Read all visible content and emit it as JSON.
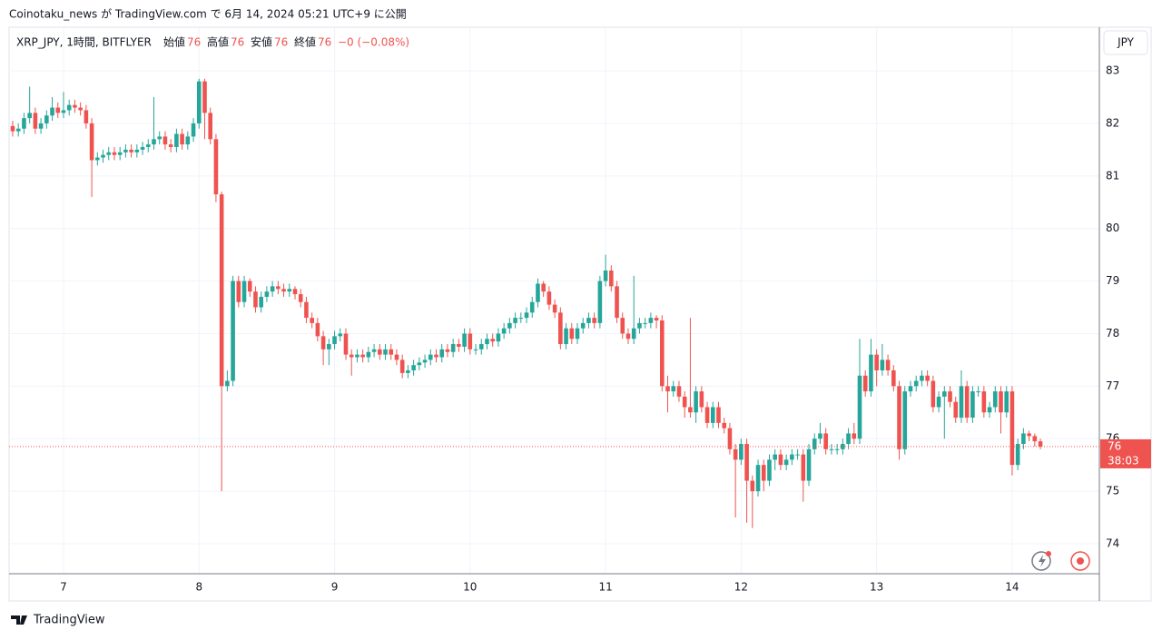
{
  "header": {
    "text": "Coinotaku_news が TradingView.com で 6月 14, 2024 05:21 UTC+9 に公開"
  },
  "legend": {
    "symbol": "XRP_JPY, 1時間, BITFLYER",
    "open_label": "始値",
    "open": 76,
    "high_label": "高値",
    "high": 76,
    "low_label": "安値",
    "low": 76,
    "close_label": "終値",
    "close": 76,
    "change": "−0 (−0.08%)"
  },
  "footer": {
    "brand": "TradingView"
  },
  "chart_data": {
    "type": "candlestick",
    "currency": "JPY",
    "up_color": "#26a69a",
    "down_color": "#ef5350",
    "ylim": [
      73.43,
      83.83
    ],
    "yticks": [
      74,
      75,
      76,
      77,
      78,
      79,
      80,
      81,
      82,
      83
    ],
    "grid": true,
    "last_price": 75.85,
    "last_price_label": "76",
    "countdown": "38:03",
    "categories": [
      null,
      null,
      null,
      null,
      null,
      null,
      null,
      null,
      null,
      "7",
      null,
      null,
      null,
      null,
      null,
      null,
      null,
      null,
      null,
      null,
      null,
      null,
      null,
      null,
      null,
      null,
      null,
      null,
      null,
      null,
      null,
      null,
      null,
      "8",
      null,
      null,
      null,
      null,
      null,
      null,
      null,
      null,
      null,
      null,
      null,
      null,
      null,
      null,
      null,
      null,
      null,
      null,
      null,
      null,
      null,
      null,
      null,
      "9",
      null,
      null,
      null,
      null,
      null,
      null,
      null,
      null,
      null,
      null,
      null,
      null,
      null,
      null,
      null,
      null,
      null,
      null,
      null,
      null,
      null,
      null,
      null,
      "10",
      null,
      null,
      null,
      null,
      null,
      null,
      null,
      null,
      null,
      null,
      null,
      null,
      null,
      null,
      null,
      null,
      null,
      null,
      null,
      null,
      null,
      null,
      null,
      "11",
      null,
      null,
      null,
      null,
      null,
      null,
      null,
      null,
      null,
      null,
      null,
      null,
      null,
      null,
      null,
      null,
      null,
      null,
      null,
      null,
      null,
      null,
      null,
      "12",
      null,
      null,
      null,
      null,
      null,
      null,
      null,
      null,
      null,
      null,
      null,
      null,
      null,
      null,
      null,
      null,
      null,
      null,
      null,
      null,
      null,
      null,
      null,
      "13",
      null,
      null,
      null,
      null,
      null,
      null,
      null,
      null,
      null,
      null,
      null,
      null,
      null,
      null,
      null,
      null,
      null,
      null,
      null,
      null,
      null,
      null,
      null,
      "14",
      null,
      null,
      null,
      null,
      null
    ],
    "open": [
      81.95,
      81.85,
      81.9,
      82.1,
      82.2,
      81.9,
      82.0,
      82.15,
      82.3,
      82.2,
      82.25,
      82.35,
      82.3,
      82.25,
      82.0,
      81.3,
      81.35,
      81.4,
      81.45,
      81.4,
      81.45,
      81.5,
      81.45,
      81.5,
      81.55,
      81.6,
      81.7,
      81.75,
      81.6,
      81.55,
      81.8,
      81.6,
      81.75,
      82.0,
      82.8,
      82.2,
      81.7,
      80.65,
      77.0,
      77.1,
      79.0,
      78.6,
      79.0,
      78.8,
      78.5,
      78.7,
      78.8,
      78.9,
      78.85,
      78.8,
      78.85,
      78.75,
      78.6,
      78.3,
      78.2,
      77.95,
      77.7,
      77.8,
      77.95,
      78.0,
      77.6,
      77.55,
      77.6,
      77.55,
      77.65,
      77.7,
      77.6,
      77.7,
      77.6,
      77.5,
      77.25,
      77.3,
      77.4,
      77.45,
      77.5,
      77.6,
      77.55,
      77.7,
      77.65,
      77.8,
      77.75,
      78.0,
      77.7,
      77.7,
      77.8,
      77.9,
      77.85,
      78.0,
      78.1,
      78.2,
      78.3,
      78.3,
      78.4,
      78.6,
      78.95,
      78.8,
      78.55,
      78.4,
      77.8,
      78.1,
      77.9,
      78.1,
      78.2,
      78.3,
      78.2,
      79.0,
      79.2,
      78.9,
      78.3,
      78.0,
      77.9,
      78.1,
      78.2,
      78.2,
      78.3,
      78.25,
      77.0,
      76.9,
      77.0,
      76.8,
      76.6,
      76.5,
      76.9,
      76.6,
      76.3,
      76.6,
      76.3,
      76.2,
      75.8,
      75.6,
      75.9,
      75.2,
      75.0,
      75.5,
      75.2,
      75.6,
      75.7,
      75.5,
      75.6,
      75.7,
      75.7,
      75.2,
      75.8,
      76.0,
      76.1,
      75.8,
      75.8,
      75.8,
      75.9,
      76.1,
      76.0,
      77.2,
      76.9,
      77.6,
      77.3,
      77.5,
      77.3,
      77.0,
      75.8,
      76.9,
      77.0,
      77.1,
      77.2,
      77.1,
      76.6,
      76.8,
      76.9,
      76.7,
      76.4,
      77.0,
      76.4,
      76.9,
      76.9,
      76.5,
      76.6,
      76.9,
      76.5,
      76.9,
      75.5,
      75.9,
      76.1,
      76.05,
      75.95
    ],
    "high": [
      82.05,
      82.0,
      82.2,
      82.7,
      82.3,
      82.1,
      82.25,
      82.5,
      82.4,
      82.6,
      82.45,
      82.45,
      82.4,
      82.35,
      82.1,
      81.45,
      81.5,
      81.55,
      81.55,
      81.55,
      81.6,
      81.6,
      81.6,
      81.65,
      81.7,
      82.5,
      81.85,
      81.85,
      81.7,
      81.9,
      81.9,
      81.85,
      82.1,
      82.85,
      82.85,
      82.3,
      81.8,
      80.7,
      77.3,
      79.1,
      79.1,
      79.1,
      79.05,
      78.9,
      78.8,
      78.9,
      79.0,
      79.0,
      78.95,
      78.95,
      78.9,
      78.85,
      78.7,
      78.4,
      78.3,
      78.05,
      77.9,
      78.05,
      78.1,
      78.1,
      77.7,
      77.7,
      77.7,
      77.75,
      77.8,
      77.8,
      77.8,
      77.8,
      77.7,
      77.6,
      77.4,
      77.5,
      77.55,
      77.6,
      77.7,
      77.7,
      77.8,
      77.8,
      77.9,
      77.9,
      78.1,
      78.1,
      77.8,
      77.9,
      78.0,
      78.0,
      78.1,
      78.2,
      78.3,
      78.4,
      78.4,
      78.5,
      78.7,
      79.05,
      79.0,
      78.9,
      78.65,
      78.5,
      78.2,
      78.2,
      78.2,
      78.3,
      78.4,
      78.4,
      79.1,
      79.5,
      79.3,
      79.0,
      78.4,
      78.1,
      79.1,
      78.3,
      78.3,
      78.4,
      78.35,
      78.35,
      77.2,
      77.1,
      77.1,
      76.9,
      78.3,
      77.0,
      77.0,
      76.7,
      76.7,
      76.7,
      76.4,
      76.3,
      75.9,
      76.0,
      76.0,
      75.3,
      75.6,
      75.6,
      75.7,
      75.8,
      75.8,
      75.7,
      75.8,
      75.8,
      75.8,
      75.9,
      76.1,
      76.3,
      76.2,
      75.9,
      75.9,
      76.0,
      76.2,
      76.3,
      77.9,
      77.3,
      77.9,
      77.7,
      77.8,
      77.6,
      77.4,
      77.1,
      77.0,
      77.1,
      77.2,
      77.3,
      77.3,
      77.2,
      76.9,
      77.0,
      77.0,
      76.8,
      77.3,
      77.1,
      77.0,
      77.0,
      77.0,
      76.7,
      77.0,
      77.0,
      77.0,
      77.0,
      76.0,
      76.2,
      76.15,
      76.1,
      76.0
    ],
    "low": [
      81.75,
      81.75,
      81.8,
      82.0,
      81.8,
      81.8,
      81.9,
      82.05,
      82.1,
      82.1,
      82.15,
      82.2,
      82.15,
      81.9,
      80.6,
      81.2,
      81.25,
      81.3,
      81.3,
      81.3,
      81.35,
      81.35,
      81.35,
      81.4,
      81.45,
      81.5,
      81.6,
      81.5,
      81.45,
      81.45,
      81.5,
      81.5,
      81.65,
      81.9,
      81.7,
      81.6,
      80.5,
      75.0,
      76.9,
      77.0,
      78.5,
      78.5,
      78.7,
      78.4,
      78.4,
      78.6,
      78.7,
      78.75,
      78.7,
      78.7,
      78.65,
      78.5,
      78.2,
      78.1,
      77.85,
      77.4,
      77.4,
      77.7,
      77.85,
      77.5,
      77.2,
      77.45,
      77.45,
      77.45,
      77.55,
      77.5,
      77.5,
      77.5,
      77.4,
      77.15,
      77.15,
      77.2,
      77.3,
      77.35,
      77.4,
      77.45,
      77.45,
      77.55,
      77.55,
      77.65,
      77.65,
      77.6,
      77.6,
      77.6,
      77.7,
      77.75,
      77.75,
      77.9,
      78.0,
      78.1,
      78.2,
      78.2,
      78.3,
      78.5,
      78.7,
      78.45,
      78.3,
      77.7,
      77.7,
      77.8,
      77.8,
      78.0,
      78.1,
      78.1,
      78.1,
      78.9,
      78.8,
      78.2,
      77.9,
      77.8,
      77.8,
      78.0,
      78.1,
      78.1,
      78.1,
      76.9,
      76.5,
      76.8,
      76.7,
      76.4,
      76.4,
      76.3,
      76.5,
      76.2,
      76.2,
      76.2,
      76.1,
      75.7,
      74.5,
      75.5,
      74.4,
      74.3,
      74.9,
      75.0,
      75.1,
      75.4,
      75.4,
      75.4,
      75.5,
      75.6,
      74.8,
      75.1,
      75.7,
      75.9,
      75.7,
      75.7,
      75.7,
      75.7,
      75.8,
      75.9,
      75.9,
      76.8,
      76.8,
      77.0,
      77.2,
      77.2,
      76.9,
      75.6,
      75.7,
      76.8,
      76.9,
      77.0,
      77.0,
      76.5,
      76.5,
      76.0,
      76.6,
      76.3,
      76.3,
      76.3,
      76.3,
      76.8,
      76.4,
      76.4,
      76.5,
      76.1,
      76.4,
      75.3,
      75.4,
      75.8,
      75.95,
      75.85,
      75.8
    ],
    "close": [
      81.85,
      81.9,
      82.1,
      82.2,
      81.9,
      82.0,
      82.15,
      82.3,
      82.2,
      82.25,
      82.35,
      82.3,
      82.25,
      82.0,
      81.3,
      81.35,
      81.4,
      81.45,
      81.4,
      81.45,
      81.5,
      81.45,
      81.5,
      81.55,
      81.6,
      81.7,
      81.75,
      81.6,
      81.55,
      81.8,
      81.6,
      81.75,
      82.0,
      82.8,
      82.2,
      81.7,
      80.65,
      77.0,
      77.1,
      79.0,
      78.6,
      79.0,
      78.8,
      78.5,
      78.7,
      78.8,
      78.9,
      78.85,
      78.8,
      78.85,
      78.75,
      78.6,
      78.3,
      78.2,
      77.95,
      77.7,
      77.8,
      77.95,
      78.0,
      77.6,
      77.55,
      77.6,
      77.55,
      77.65,
      77.7,
      77.6,
      77.7,
      77.6,
      77.5,
      77.25,
      77.3,
      77.4,
      77.45,
      77.5,
      77.6,
      77.55,
      77.7,
      77.65,
      77.8,
      77.75,
      78.0,
      77.7,
      77.7,
      77.8,
      77.9,
      77.85,
      78.0,
      78.1,
      78.2,
      78.3,
      78.3,
      78.4,
      78.6,
      78.95,
      78.8,
      78.55,
      78.4,
      77.8,
      78.1,
      77.9,
      78.1,
      78.2,
      78.3,
      78.2,
      79.0,
      79.2,
      78.9,
      78.3,
      78.0,
      77.9,
      78.1,
      78.2,
      78.2,
      78.3,
      78.25,
      77.0,
      76.9,
      77.0,
      76.8,
      76.6,
      76.5,
      76.9,
      76.6,
      76.3,
      76.6,
      76.3,
      76.2,
      75.8,
      75.6,
      75.9,
      75.2,
      75.0,
      75.5,
      75.2,
      75.6,
      75.7,
      75.5,
      75.6,
      75.7,
      75.7,
      75.2,
      75.8,
      76.0,
      76.1,
      75.8,
      75.8,
      75.8,
      75.9,
      76.1,
      76.0,
      77.2,
      76.9,
      77.6,
      77.3,
      77.5,
      77.3,
      77.0,
      75.8,
      76.9,
      77.0,
      77.1,
      77.2,
      77.1,
      76.6,
      76.8,
      76.9,
      76.7,
      76.4,
      77.0,
      76.4,
      76.9,
      76.9,
      76.5,
      76.6,
      76.9,
      76.5,
      76.9,
      75.5,
      75.9,
      76.1,
      76.05,
      75.95,
      75.85
    ]
  }
}
